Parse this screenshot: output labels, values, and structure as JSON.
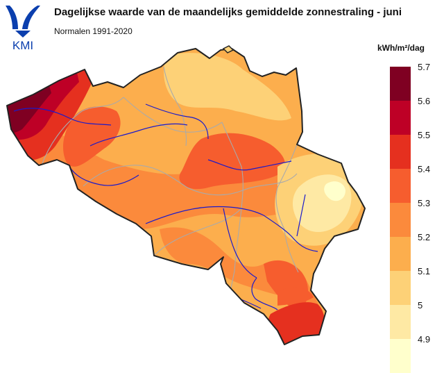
{
  "header": {
    "logo_text": "KMI",
    "title": "Dagelijkse waarde van de maandelijks gemiddelde zonnestraling - juni",
    "subtitle": "Normalen 1991-2020"
  },
  "legend": {
    "unit": "kWh/m²/dag",
    "ticks": [
      "5.7",
      "5.6",
      "5.5",
      "5.4",
      "5.3",
      "5.2",
      "5.1",
      "5",
      "4.9"
    ],
    "colors": [
      "#7f0022",
      "#be0026",
      "#e5301f",
      "#f65d2e",
      "#fb8a3c",
      "#fcae4d",
      "#fdd177",
      "#fee9a4",
      "#ffffcc"
    ]
  },
  "map": {
    "country_outline_color": "#222222",
    "province_border_color": "#aaaaaa",
    "river_color": "#1a1acc"
  }
}
